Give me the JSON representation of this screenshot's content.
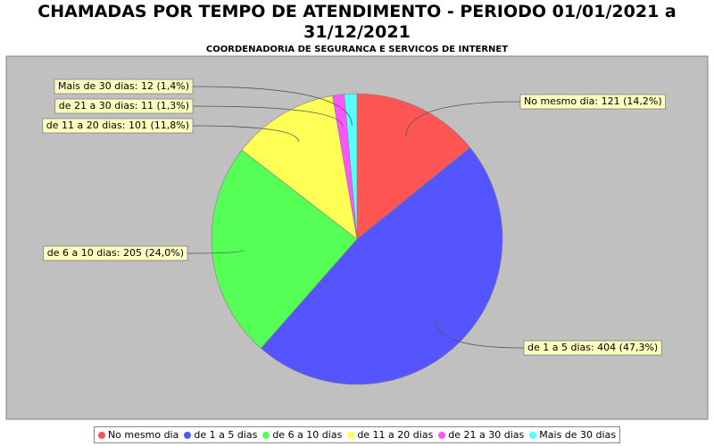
{
  "chart_data": {
    "type": "pie",
    "title": "CHAMADAS POR TEMPO DE ATENDIMENTO - PERIODO 01/01/2021 a 31/12/2021",
    "subtitle": "COORDENADORIA DE SEGURANCA E SERVICOS DE INTERNET",
    "categories": [
      "No mesmo dia",
      "de 1 a 5 dias",
      "de 6 a 10 dias",
      "de 11 a 20 dias",
      "de 21 a 30 dias",
      "Mais de 30 dias"
    ],
    "values": [
      121,
      404,
      205,
      101,
      11,
      12
    ],
    "value_labels": [
      "No mesmo dia: 121 (14,2%)",
      "de 1 a 5 dias: 404 (47,3%)",
      "de 6 a 10 dias: 205 (24,0%)",
      "de 11 a 20 dias: 101 (11,8%)",
      "de 21 a 30 dias: 11 (1,3%)",
      "Mais de 30 dias: 12 (1,4%)"
    ],
    "colors": [
      "#ff5555",
      "#5555ff",
      "#55ff55",
      "#ffff55",
      "#ff55ff",
      "#55ffff"
    ],
    "legend": "bottom"
  }
}
